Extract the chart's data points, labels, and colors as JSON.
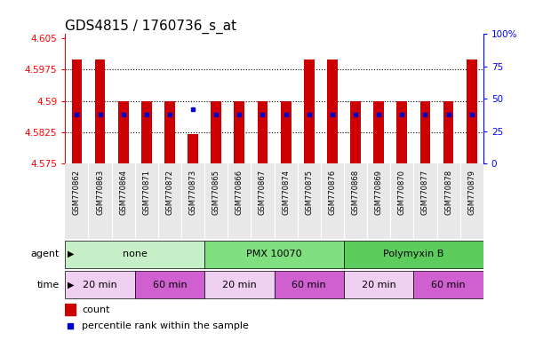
{
  "title": "GDS4815 / 1760736_s_at",
  "samples": [
    "GSM770862",
    "GSM770863",
    "GSM770864",
    "GSM770871",
    "GSM770872",
    "GSM770873",
    "GSM770865",
    "GSM770866",
    "GSM770867",
    "GSM770874",
    "GSM770875",
    "GSM770876",
    "GSM770868",
    "GSM770869",
    "GSM770870",
    "GSM770877",
    "GSM770878",
    "GSM770879"
  ],
  "bar_tops": [
    4.6,
    4.6,
    4.59,
    4.59,
    4.59,
    4.582,
    4.59,
    4.59,
    4.59,
    4.59,
    4.6,
    4.6,
    4.59,
    4.59,
    4.59,
    4.59,
    4.59,
    4.6
  ],
  "bar_bottom": 4.575,
  "blue_pct": [
    38,
    38,
    38,
    38,
    38,
    42,
    38,
    38,
    38,
    38,
    38,
    38,
    38,
    38,
    38,
    38,
    38,
    38
  ],
  "ylim": [
    4.575,
    4.606
  ],
  "yticks": [
    4.575,
    4.5825,
    4.59,
    4.5975,
    4.605
  ],
  "ytick_labels": [
    "4.575",
    "4.5825",
    "4.59",
    "4.5975",
    "4.605"
  ],
  "y2ticks": [
    0,
    25,
    50,
    75,
    100
  ],
  "y2tick_labels": [
    "0",
    "25",
    "50",
    "75",
    "100%"
  ],
  "bar_color": "#cc0000",
  "dot_color": "#0000cc",
  "agent_groups": [
    {
      "label": "none",
      "start": 0,
      "end": 6,
      "color": "#c8f0c8"
    },
    {
      "label": "PMX 10070",
      "start": 6,
      "end": 12,
      "color": "#80e080"
    },
    {
      "label": "Polymyxin B",
      "start": 12,
      "end": 18,
      "color": "#5ccc5c"
    }
  ],
  "time_groups": [
    {
      "label": "20 min",
      "start": 0,
      "end": 3,
      "color": "#f0d0f0"
    },
    {
      "label": "60 min",
      "start": 3,
      "end": 6,
      "color": "#d060d0"
    },
    {
      "label": "20 min",
      "start": 6,
      "end": 9,
      "color": "#f0d0f0"
    },
    {
      "label": "60 min",
      "start": 9,
      "end": 12,
      "color": "#d060d0"
    },
    {
      "label": "20 min",
      "start": 12,
      "end": 15,
      "color": "#f0d0f0"
    },
    {
      "label": "60 min",
      "start": 15,
      "end": 18,
      "color": "#d060d0"
    }
  ],
  "legend_count_color": "#cc0000",
  "legend_dot_color": "#0000cc",
  "title_fontsize": 11,
  "tick_fontsize": 7.5,
  "sample_fontsize": 6,
  "bar_width": 0.45
}
